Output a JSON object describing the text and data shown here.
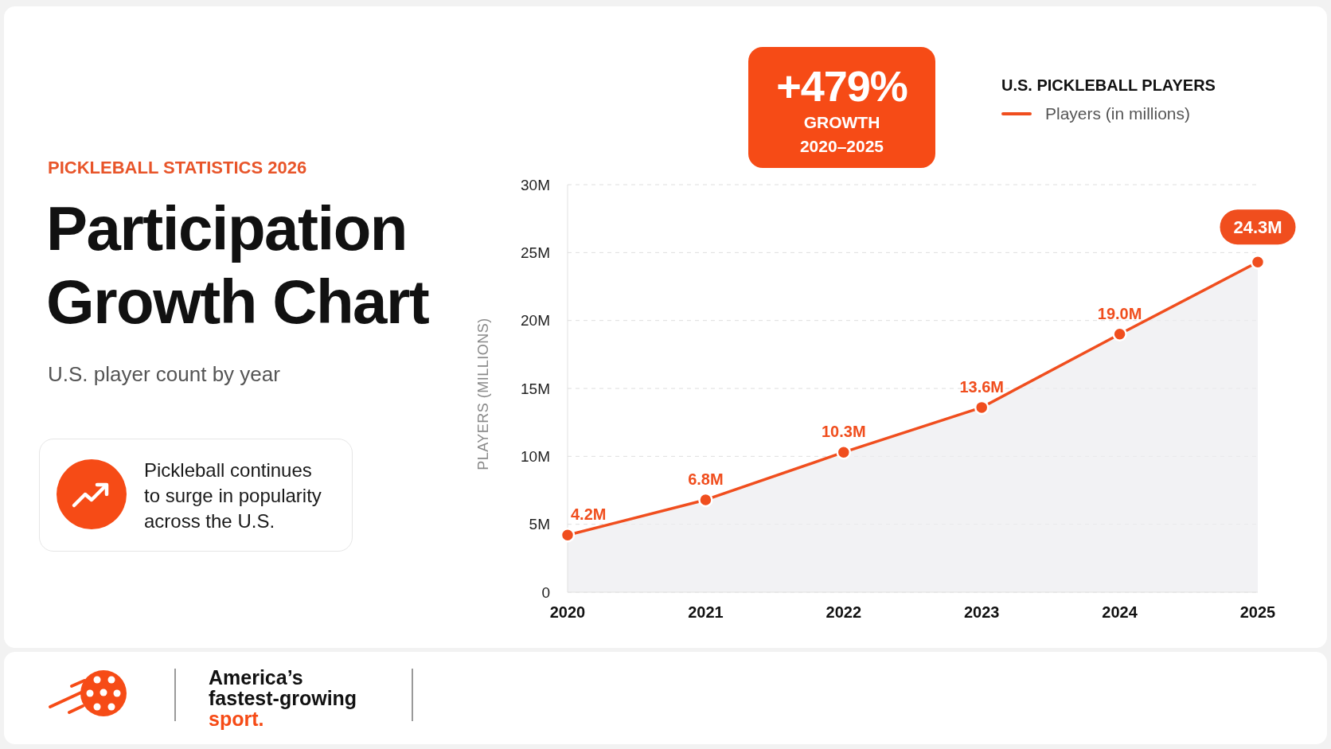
{
  "chart_data": {
    "type": "area",
    "title": "Participation Growth Chart",
    "subtitle": "U.S. player count by year",
    "ylabel": "PLAYERS (MILLIONS)",
    "legend_title": "U.S. PICKLEBALL PLAYERS",
    "annotations": [
      "PICKLEBALL STATISTICS 2026",
      "+479%",
      "GROWTH",
      "2020–2025",
      "Pickleball continues to surge in popularity across the U.S.",
      "America’s fastest-growing",
      "sport."
    ],
    "categories": [
      "2020",
      "2021",
      "2022",
      "2023",
      "2024",
      "2025"
    ],
    "series": [
      {
        "name": "Players (in millions)",
        "color": "#f04e1e",
        "values": [
          4.2,
          6.8,
          10.3,
          13.6,
          19.0,
          24.3
        ],
        "value_labels": [
          "4.2M",
          "6.8M",
          "10.3M",
          "13.6M",
          "19.0M",
          "24.3M"
        ]
      }
    ],
    "ylim": [
      0,
      30
    ],
    "yticks": [
      0,
      {
        "value": 5,
        "label": "5M"
      },
      {
        "value": 10,
        "label": "10M"
      },
      {
        "value": 15,
        "label": "15M"
      },
      {
        "value": 20,
        "label": "20M"
      },
      {
        "value": 25,
        "label": "25M"
      },
      {
        "value": 30,
        "label": "30M"
      }
    ],
    "grid": "y",
    "legend": "top right",
    "marker": "circle",
    "line_style": "solid"
  }
}
